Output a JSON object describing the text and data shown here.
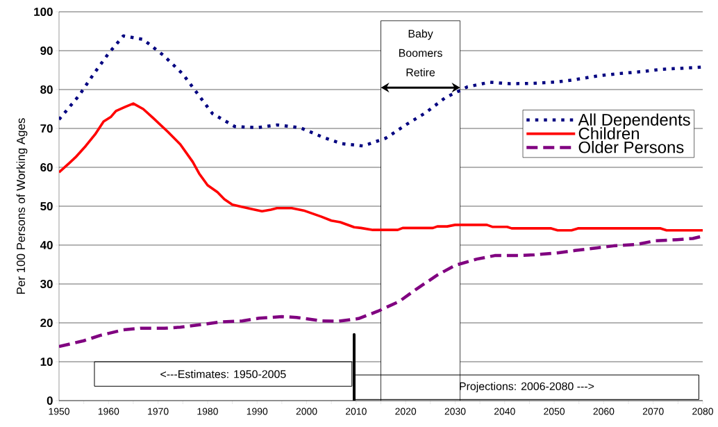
{
  "chart_data": {
    "type": "line",
    "ylabel": "Per 100 Persons of Working Ages",
    "xlim": [
      1950,
      2080
    ],
    "xticks": [
      1950,
      1960,
      1970,
      1980,
      1990,
      2000,
      2010,
      2020,
      2030,
      2040,
      2050,
      2060,
      2070,
      2080
    ],
    "ylim": [
      0,
      100
    ],
    "yticks": [
      0,
      10,
      20,
      30,
      40,
      50,
      60,
      70,
      80,
      90,
      100
    ],
    "grid": "y",
    "legend": "right",
    "series": [
      {
        "name": "All Dependents",
        "color": "#000080",
        "line_style": "dotted",
        "x": [
          1950,
          1954,
          1957,
          1960,
          1963,
          1967,
          1971,
          1975,
          1978,
          1981,
          1985.5,
          1990,
          1994,
          1998.7,
          2003,
          2007,
          2011.4,
          2016,
          2020,
          2024,
          2028,
          2032.5,
          2037,
          2041,
          2045.5,
          2050,
          2054,
          2058.7,
          2063,
          2067.5,
          2071.7,
          2076,
          2080
        ],
        "values": [
          72.3,
          78.4,
          84,
          89.3,
          93.8,
          92.9,
          88.9,
          84,
          78.9,
          73.8,
          70.5,
          70.2,
          70.9,
          70.2,
          67.9,
          66.1,
          65.5,
          67.5,
          70.9,
          74,
          77.9,
          80.7,
          81.9,
          81.5,
          81.6,
          81.9,
          82.5,
          83.5,
          84.1,
          84.6,
          85.2,
          85.5,
          85.8
        ]
      },
      {
        "name": "Children",
        "color": "#ff0000",
        "line_style": "solid",
        "x": [
          1950,
          1952,
          1953.5,
          1955.4,
          1957.3,
          1959,
          1960.5,
          1961.5,
          1963.3,
          1965,
          1967,
          1969,
          1972,
          1974.5,
          1977,
          1978.3,
          1980,
          1982,
          1983.4,
          1985,
          1987,
          1989.5,
          1991,
          1992.8,
          1994,
          1997,
          1999.4,
          2003,
          2005,
          2006.8,
          2009.6,
          2011,
          2013.4,
          2018.4,
          2019.4,
          2025.5,
          2026.4,
          2028.4,
          2030,
          2036.4,
          2037.5,
          2040.5,
          2041.4,
          2049.4,
          2050.7,
          2053.5,
          2054.8,
          2071.5,
          2072.7,
          2080
        ],
        "values": [
          58.7,
          61,
          62.8,
          65.5,
          68.5,
          71.8,
          73,
          74.5,
          75.5,
          76.4,
          75,
          72.7,
          69.1,
          65.9,
          61.4,
          58.4,
          55.4,
          53.6,
          51.8,
          50.4,
          49.8,
          49.1,
          48.7,
          49.1,
          49.5,
          49.5,
          48.9,
          47.3,
          46.3,
          45.9,
          44.6,
          44.4,
          43.9,
          43.9,
          44.4,
          44.4,
          44.8,
          44.8,
          45.2,
          45.2,
          44.7,
          44.7,
          44.3,
          44.3,
          43.8,
          43.8,
          44.3,
          44.3,
          43.8,
          43.8
        ]
      },
      {
        "name": "Older Persons",
        "color": "#800080",
        "line_style": "dashed",
        "x": [
          1950,
          1955,
          1958.4,
          1963,
          1966.4,
          1971.3,
          1974.5,
          1979,
          1982.3,
          1987,
          1990.4,
          1995,
          1998,
          2003,
          2006.4,
          2010.5,
          2014.4,
          2018.7,
          2022.2,
          2026.4,
          2030,
          2034.4,
          2038,
          2042.7,
          2046,
          2050.7,
          2054.2,
          2058.7,
          2062,
          2066.8,
          2070.3,
          2074.8,
          2078,
          2080
        ],
        "values": [
          13.9,
          15.4,
          16.8,
          18.2,
          18.6,
          18.6,
          18.9,
          19.6,
          20.2,
          20.5,
          21.2,
          21.6,
          21.4,
          20.5,
          20.4,
          21.1,
          23,
          25.5,
          28.7,
          32.3,
          34.8,
          36.4,
          37.3,
          37.3,
          37.5,
          38,
          38.6,
          39.3,
          39.8,
          40.2,
          41.1,
          41.4,
          41.7,
          42.3
        ]
      }
    ],
    "bands": [
      {
        "axis": "x",
        "from": 2015,
        "to": 2031,
        "label": "Baby Boomers Retire"
      }
    ],
    "ref_lines": [
      {
        "axis": "x",
        "value": 2009.6
      }
    ],
    "annotations": [
      "<---Estimates: 1950-2005",
      "Projections: 2006-2080 --->"
    ]
  }
}
